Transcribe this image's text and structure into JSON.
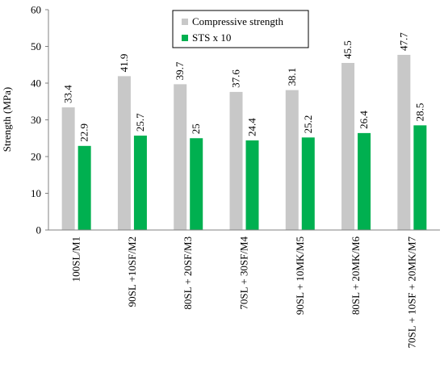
{
  "chart_data": {
    "type": "bar",
    "title": "",
    "xlabel": "",
    "ylabel": "Strength (MPa)",
    "ylim": [
      0,
      60
    ],
    "yticks": [
      0,
      10,
      20,
      30,
      40,
      50,
      60
    ],
    "grid": false,
    "legend_position": "top-center",
    "categories": [
      "100SL/M1",
      "90SL +10SF/M2",
      "80SL + 20SF/M3",
      "70SL + 30SF/M4",
      "90SL + 10MK/M5",
      "80SL + 20MK/M6",
      "70SL + 10SF + 20MK/M7"
    ],
    "series": [
      {
        "name": "Compressive strength",
        "color": "#c8c8c8",
        "values": [
          33.4,
          41.9,
          39.7,
          37.6,
          38.1,
          45.5,
          47.7
        ],
        "labels": [
          "33.4",
          "41.9",
          "39.7",
          "37.6",
          "38.1",
          "45.5",
          "47.7"
        ]
      },
      {
        "name": "STS x 10",
        "color": "#00b050",
        "values": [
          22.9,
          25.7,
          25,
          24.4,
          25.2,
          26.4,
          28.5
        ],
        "labels": [
          "22.9",
          "25.7",
          "25",
          "24.4",
          "25.2",
          "26.4",
          "28.5"
        ]
      }
    ]
  }
}
